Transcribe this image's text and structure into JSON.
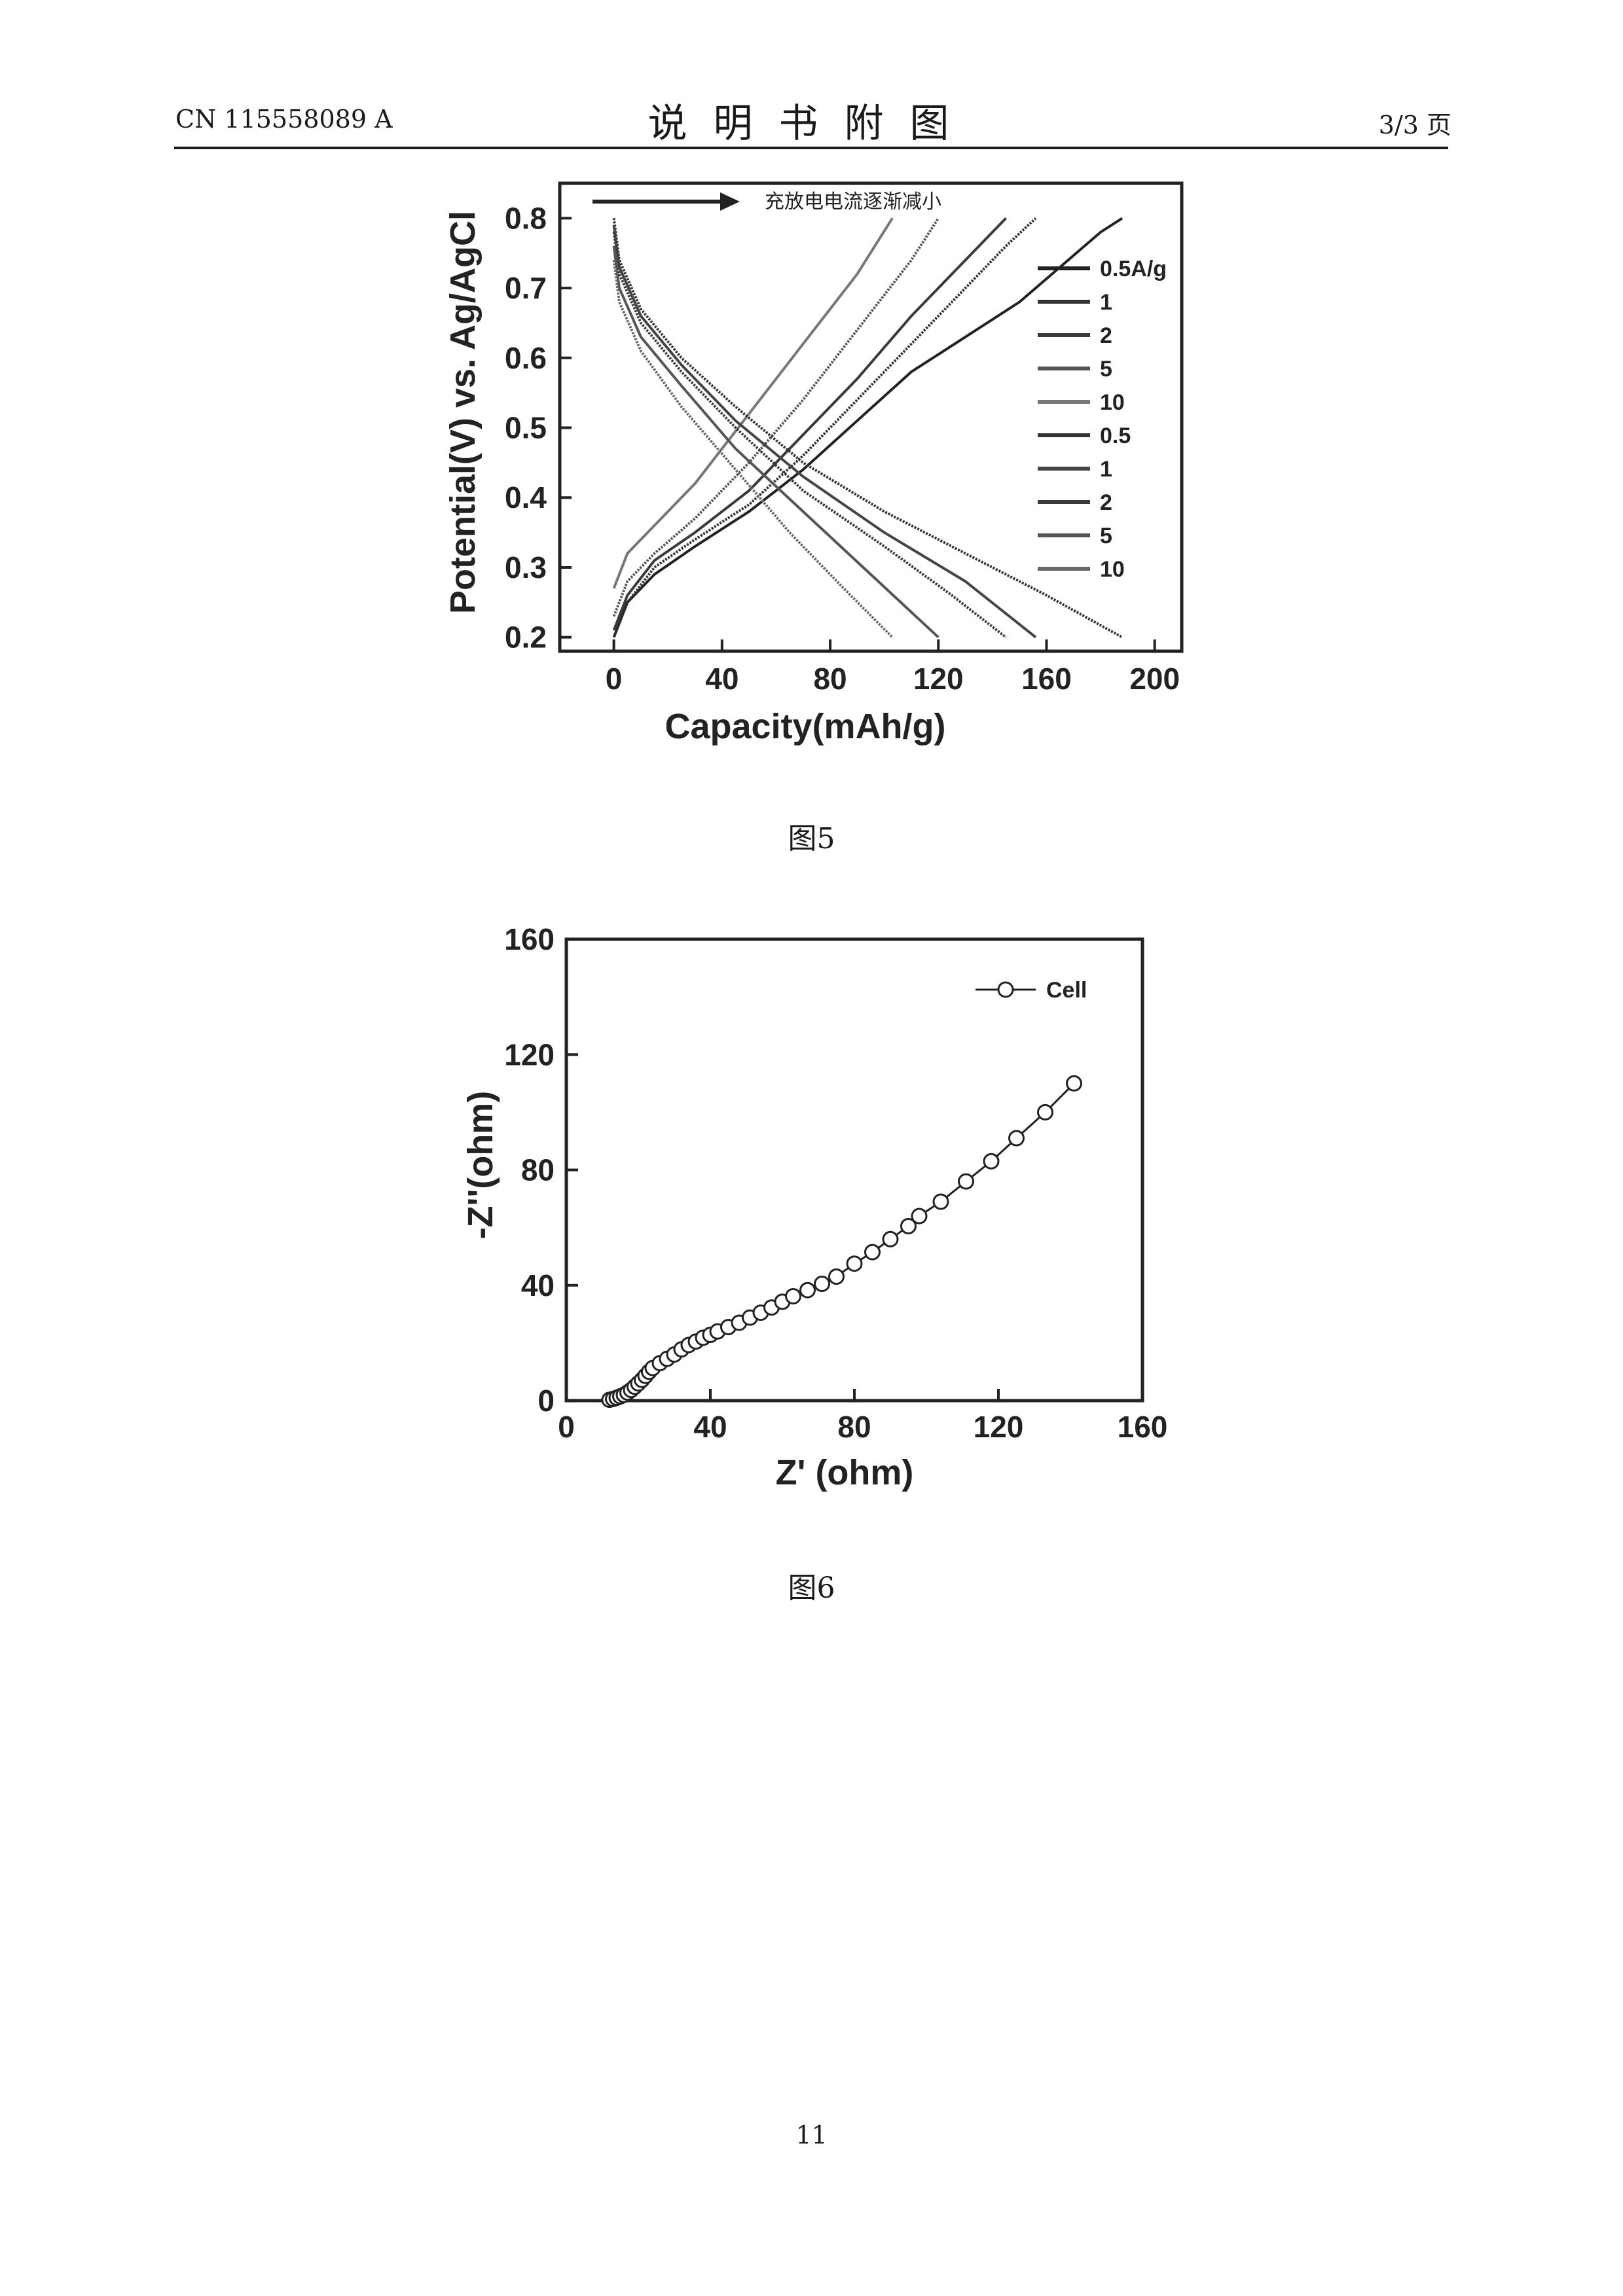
{
  "header": {
    "left": "CN 115558089 A",
    "center": "说明书附图",
    "right": "3/3 页"
  },
  "figures": [
    {
      "caption": "图5"
    },
    {
      "caption": "图6"
    }
  ],
  "page_number": "11",
  "chart_data": [
    {
      "type": "line",
      "title": "",
      "xlabel": "Capacity(mAh/g)",
      "ylabel": "Potential(V) vs. Ag/AgCl",
      "xlim": [
        -20,
        210
      ],
      "ylim": [
        0.18,
        0.85
      ],
      "xticks": [
        "0",
        "40",
        "80",
        "120",
        "160",
        "200"
      ],
      "yticks": [
        "0.2",
        "0.3",
        "0.4",
        "0.5",
        "0.6",
        "0.7",
        "0.8"
      ],
      "annotation": "充放电电流逐渐减小",
      "legend_position": "right",
      "series": [
        {
          "name": "0.5A/g",
          "x": [
            0,
            5,
            15,
            30,
            50,
            70,
            90,
            110,
            130,
            150,
            165,
            180,
            188
          ],
          "y": [
            0.2,
            0.25,
            0.29,
            0.33,
            0.38,
            0.44,
            0.51,
            0.58,
            0.63,
            0.68,
            0.73,
            0.78,
            0.8
          ]
        },
        {
          "name": "1",
          "x": [
            0,
            5,
            15,
            30,
            50,
            70,
            90,
            110,
            130,
            145,
            156
          ],
          "y": [
            0.2,
            0.25,
            0.3,
            0.34,
            0.39,
            0.46,
            0.54,
            0.62,
            0.7,
            0.76,
            0.8
          ]
        },
        {
          "name": "2",
          "x": [
            0,
            5,
            15,
            30,
            50,
            70,
            90,
            110,
            130,
            145
          ],
          "y": [
            0.21,
            0.26,
            0.31,
            0.35,
            0.41,
            0.49,
            0.57,
            0.66,
            0.74,
            0.8
          ]
        },
        {
          "name": "5",
          "x": [
            0,
            5,
            15,
            30,
            50,
            70,
            90,
            110,
            120
          ],
          "y": [
            0.23,
            0.28,
            0.32,
            0.37,
            0.45,
            0.54,
            0.64,
            0.74,
            0.8
          ]
        },
        {
          "name": "10",
          "x": [
            0,
            5,
            15,
            30,
            50,
            70,
            90,
            103
          ],
          "y": [
            0.27,
            0.32,
            0.36,
            0.42,
            0.52,
            0.62,
            0.72,
            0.8
          ]
        },
        {
          "name": "0.5",
          "x": [
            0,
            2,
            10,
            25,
            45,
            70,
            100,
            130,
            160,
            188
          ],
          "y": [
            0.8,
            0.74,
            0.67,
            0.6,
            0.53,
            0.45,
            0.38,
            0.32,
            0.26,
            0.2
          ]
        },
        {
          "name": "1",
          "x": [
            0,
            2,
            10,
            25,
            45,
            70,
            100,
            130,
            156
          ],
          "y": [
            0.79,
            0.73,
            0.66,
            0.59,
            0.51,
            0.43,
            0.35,
            0.28,
            0.2
          ]
        },
        {
          "name": "2",
          "x": [
            0,
            2,
            10,
            25,
            45,
            70,
            100,
            125,
            145
          ],
          "y": [
            0.78,
            0.72,
            0.65,
            0.58,
            0.5,
            0.41,
            0.33,
            0.26,
            0.2
          ]
        },
        {
          "name": "5",
          "x": [
            0,
            2,
            10,
            25,
            45,
            70,
            95,
            120
          ],
          "y": [
            0.76,
            0.7,
            0.63,
            0.56,
            0.47,
            0.38,
            0.29,
            0.2
          ]
        },
        {
          "name": "10",
          "x": [
            0,
            2,
            10,
            25,
            45,
            65,
            85,
            103
          ],
          "y": [
            0.74,
            0.68,
            0.61,
            0.53,
            0.44,
            0.35,
            0.27,
            0.2
          ]
        }
      ]
    },
    {
      "type": "scatter",
      "title": "",
      "xlabel": "Z' (ohm)",
      "ylabel": "-Z''(ohm)",
      "xlim": [
        0,
        160
      ],
      "ylim": [
        0,
        160
      ],
      "xticks": [
        "0",
        "40",
        "80",
        "120",
        "160"
      ],
      "yticks": [
        "0",
        "40",
        "80",
        "120",
        "160"
      ],
      "legend_position": "top-right",
      "series": [
        {
          "name": "Cell",
          "x": [
            12,
            13,
            14,
            15,
            16,
            17,
            18,
            19,
            20,
            21,
            22,
            23,
            24,
            26,
            28,
            30,
            32,
            34,
            36,
            38,
            40,
            42,
            45,
            48,
            51,
            54,
            57,
            60,
            63,
            67,
            71,
            75,
            80,
            85,
            90,
            95,
            98,
            104,
            111,
            118,
            125,
            133,
            141
          ],
          "y": [
            0.3,
            0.6,
            1.0,
            1.5,
            2.0,
            2.8,
            3.7,
            4.8,
            6.0,
            7.2,
            8.6,
            10.0,
            11.3,
            13.0,
            14.5,
            16.0,
            17.8,
            19.3,
            20.5,
            21.8,
            22.8,
            24.0,
            25.5,
            27.0,
            28.8,
            30.5,
            32.3,
            34.3,
            36.2,
            38.3,
            40.5,
            43.0,
            47.5,
            51.5,
            56.0,
            60.5,
            64.0,
            69.0,
            76.0,
            83.0,
            91.0,
            100.0,
            110.0
          ]
        }
      ]
    }
  ]
}
